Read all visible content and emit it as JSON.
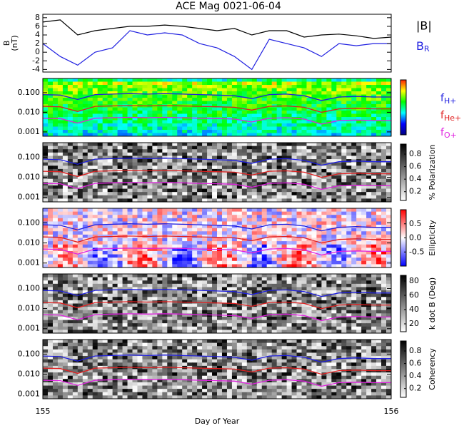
{
  "title": "ACE Mag 0021-06-04",
  "chart_data": [
    {
      "type": "line",
      "ylabel": [
        "B",
        "(nT)"
      ],
      "xlim": [
        155,
        156
      ],
      "ylim": [
        -4.6,
        8.8
      ],
      "yticks": [
        -4,
        -2,
        0,
        2,
        4,
        6,
        8
      ],
      "x": [
        155,
        155.05,
        155.1,
        155.15,
        155.2,
        155.25,
        155.3,
        155.35,
        155.4,
        155.45,
        155.5,
        155.55,
        155.6,
        155.65,
        155.7,
        155.75,
        155.8,
        155.85,
        155.9,
        155.95,
        156
      ],
      "series": [
        {
          "name": "|B|",
          "color": "#000000",
          "values": [
            7,
            7.5,
            4,
            5,
            5.5,
            6,
            6,
            6.3,
            6,
            5.5,
            5,
            5.5,
            4,
            5,
            5,
            3.5,
            4,
            4.2,
            3.8,
            3.2,
            3.5
          ]
        },
        {
          "name": "BR",
          "color": "#1f1fe0",
          "values": [
            2,
            -1,
            -3,
            0,
            1,
            5,
            4,
            4.5,
            4,
            2,
            1,
            -1,
            -4,
            3,
            2,
            1,
            -1,
            2,
            1.5,
            2,
            2
          ]
        }
      ]
    },
    {
      "type": "spectrogram",
      "colormap": "rainbow",
      "xlim": [
        155,
        156
      ],
      "ylim": [
        0.0006,
        0.53
      ],
      "log_y": true,
      "yticks": [
        {
          "value": 0.1,
          "label": "0.100"
        },
        {
          "value": 0.01,
          "label": "0.010"
        },
        0.001
      ],
      "legend": true
    },
    {
      "type": "spectrogram",
      "colormap": "gray",
      "xlim": [
        155,
        156
      ],
      "ylim": [
        0.0006,
        0.53
      ],
      "log_y": true,
      "yticks": [
        {
          "value": 0.1,
          "label": "0.100"
        },
        {
          "value": 0.01,
          "label": "0.010"
        },
        0.001
      ],
      "clabel": "% Polarization",
      "clim": [
        0.06,
        0.96
      ],
      "cticks": [
        0.2,
        0.4,
        0.6,
        0.8
      ]
    },
    {
      "type": "spectrogram",
      "colormap": "bwr",
      "xlim": [
        155,
        156
      ],
      "ylim": [
        0.0006,
        0.53
      ],
      "log_y": true,
      "yticks": [
        {
          "value": 0.1,
          "label": "0.100"
        },
        {
          "value": 0.01,
          "label": "0.010"
        },
        0.001
      ],
      "clabel": "Ellipticity",
      "clim": [
        -1,
        1
      ],
      "cticks": [
        -0.5,
        {
          "value": 0,
          "label": "0.0"
        },
        0.5
      ]
    },
    {
      "type": "spectrogram",
      "colormap": "gray",
      "xlim": [
        155,
        156
      ],
      "ylim": [
        0.0006,
        0.53
      ],
      "log_y": true,
      "yticks": [
        {
          "value": 0.1,
          "label": "0.100"
        },
        {
          "value": 0.01,
          "label": "0.010"
        },
        0.001
      ],
      "clabel": "k dot B (Deg)",
      "clim": [
        9,
        88
      ],
      "cticks": [
        20,
        40,
        60,
        80
      ]
    },
    {
      "type": "spectrogram",
      "colormap": "gray",
      "xlim": [
        155,
        156
      ],
      "ylim": [
        0.0006,
        0.53
      ],
      "log_y": true,
      "yticks": [
        {
          "value": 0.1,
          "label": "0.100"
        },
        {
          "value": 0.01,
          "label": "0.010"
        },
        0.001
      ],
      "clabel": "Coherency",
      "clim": [
        0.06,
        0.96
      ],
      "cticks": [
        0.2,
        0.4,
        0.6,
        0.8
      ],
      "xlabel": "Day of Year",
      "xticks": [
        155,
        156
      ]
    }
  ],
  "overlay": {
    "x": [
      155,
      155.05,
      155.1,
      155.15,
      155.2,
      155.25,
      155.3,
      155.35,
      155.4,
      155.45,
      155.5,
      155.55,
      155.6,
      155.65,
      155.7,
      155.75,
      155.8,
      155.85,
      155.9,
      155.95,
      156
    ],
    "series": [
      {
        "name": "fH+",
        "color": "#1f1fe0",
        "values": [
          0.08,
          0.075,
          0.045,
          0.08,
          0.085,
          0.09,
          0.085,
          0.09,
          0.085,
          0.08,
          0.075,
          0.07,
          0.05,
          0.08,
          0.085,
          0.07,
          0.04,
          0.06,
          0.065,
          0.06,
          0.06
        ]
      },
      {
        "name": "fHe+",
        "color": "#e01f1f",
        "values": [
          0.02,
          0.019,
          0.011,
          0.02,
          0.021,
          0.022,
          0.021,
          0.022,
          0.021,
          0.02,
          0.019,
          0.018,
          0.013,
          0.02,
          0.021,
          0.018,
          0.01,
          0.015,
          0.016,
          0.015,
          0.015
        ]
      },
      {
        "name": "fO+",
        "color": "#e020e0",
        "values": [
          0.005,
          0.0048,
          0.0028,
          0.005,
          0.0053,
          0.0055,
          0.0053,
          0.0055,
          0.0053,
          0.005,
          0.0048,
          0.0045,
          0.0032,
          0.005,
          0.0053,
          0.0045,
          0.0025,
          0.0038,
          0.004,
          0.0038,
          0.0038
        ]
      }
    ]
  }
}
